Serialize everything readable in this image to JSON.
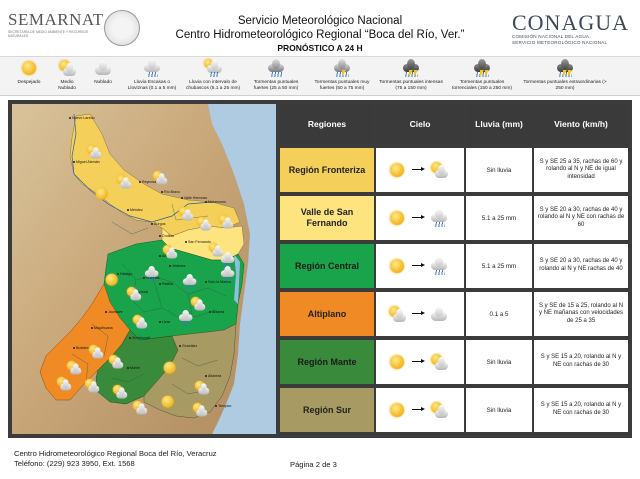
{
  "header": {
    "left_logo": "SEMARNAT",
    "left_logo_sub": "SECRETARÍA DE MEDIO AMBIENTE Y RECURSOS NATURALES",
    "title_line1": "Servicio Meteorológico Nacional",
    "title_line2": "Centro Hidrometeorológico Regional “Boca del Río, Ver.”",
    "forecast_title": "PRONÓSTICO A 24 H",
    "right_logo": "CONAGUA",
    "right_logo_sub1": "COMISIÓN NACIONAL DEL AGUA",
    "right_logo_sub2": "SERVICIO METEOROLÓGICO NACIONAL"
  },
  "legend": [
    {
      "icon": "sunny-icon",
      "label": "Despejado"
    },
    {
      "icon": "partly-cloudy-icon",
      "label": "Medio Nublado"
    },
    {
      "icon": "cloudy-icon",
      "label": "Nublado"
    },
    {
      "icon": "light-rain-icon",
      "label": "Lluvia Escasas o Lloviznas (0.1 a 5 mm)"
    },
    {
      "icon": "intermittent-showers-icon",
      "label": "Lluvia con intervalo de chubascos (5.1 a 25 mm)"
    },
    {
      "icon": "strong-storm-icon",
      "label": "Tormentas puntuales fuertes (25 a 50 mm)"
    },
    {
      "icon": "very-strong-storm-icon",
      "label": "Tormentas puntuales muy fuertes (50 a 75 mm)"
    },
    {
      "icon": "intense-storm-icon",
      "label": "Tormentas puntuales intensas (75 a 150 mm)"
    },
    {
      "icon": "torrential-storm-icon",
      "label": "Tormentas puntuales torrenciales (150 a 250 mm)"
    },
    {
      "icon": "extraordinary-storm-icon",
      "label": "Tormentas puntuales extraordinarias (> 250 mm)"
    }
  ],
  "table": {
    "headers": [
      "Regiones",
      "Cielo",
      "Lluvia (mm)",
      "Viento (km/h)"
    ],
    "rows": [
      {
        "region": "Región Fronteriza",
        "color": "#f4cf5a",
        "sky_from": "sunny",
        "sky_to": "partly-cloudy",
        "rain": "Sin lluvia",
        "wind": "S y SE 25 a 35, rachas de 60 y rolando al N y NE de igual intensidad"
      },
      {
        "region": "Valle de San Fernando",
        "color": "#fde47e",
        "sky_from": "sunny",
        "sky_to": "light-rain",
        "rain": "5.1 a 25 mm",
        "wind": "S y SE 20 a 30, rachas de 40 y rolando al N y NE con rachas de 60"
      },
      {
        "region": "Región Central",
        "color": "#19a34a",
        "sky_from": "sunny",
        "sky_to": "light-rain",
        "rain": "5.1 a 25 mm",
        "wind": "S y SE 20 a 30, rachas de 40 y rolando al N y NE rachas de 40"
      },
      {
        "region": "Altiplano",
        "color": "#f08a24",
        "sky_from": "partly-cloudy",
        "sky_to": "cloudy",
        "rain": "0.1 a 5",
        "wind": "S y SE de 15 a 25, rolando al N y NE mañanas con velocidades de 25 a 35"
      },
      {
        "region": "Región Mante",
        "color": "#3a8a3c",
        "sky_from": "sunny",
        "sky_to": "partly-cloudy",
        "rain": "Sin lluvia",
        "wind": "S y SE 15 a 20, rolando al N y NE con rachas de 30"
      },
      {
        "region": "Región Sur",
        "color": "#a79a63",
        "sky_from": "sunny",
        "sky_to": "partly-cloudy",
        "rain": "Sin lluvia",
        "wind": "S y SE 15 a 20, rolando al N y NE con rachas de 30"
      }
    ]
  },
  "map": {
    "labels": [
      "Nuevo Laredo",
      "Matamoros",
      "Reynosa",
      "Miguel Alemán",
      "Río Bravo",
      "Valle Hermoso",
      "San Fernando",
      "Abasolo",
      "Soto la Marina",
      "Victoria",
      "Jiménez",
      "Aldama",
      "Tula",
      "Mante",
      "Altamira",
      "Tampico",
      "Miquihuana",
      "Güémez",
      "Padilla",
      "Llera",
      "Hidalgo",
      "Xicoténcatl",
      "Jaumave",
      "Bustamante",
      "González",
      "Burgos",
      "Méndez",
      "Cruillas"
    ]
  },
  "footer": {
    "org_line1": "Centro Hidrometeorológico Regional Boca del Río, Veracruz",
    "org_line2": "Teléfono: (229) 923 3950, Ext. 1568",
    "page": "Página 2 de 3"
  }
}
